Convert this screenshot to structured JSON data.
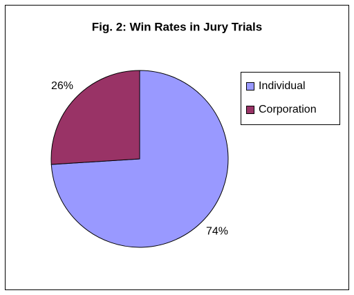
{
  "chart_data": {
    "type": "pie",
    "title": "Fig. 2: Win Rates in Jury Trials",
    "categories": [
      "Individual",
      "Corporation"
    ],
    "values": [
      74,
      26
    ],
    "value_labels": [
      "74%",
      "26%"
    ],
    "colors": [
      "#9999ff",
      "#993366"
    ],
    "legend": "right"
  }
}
